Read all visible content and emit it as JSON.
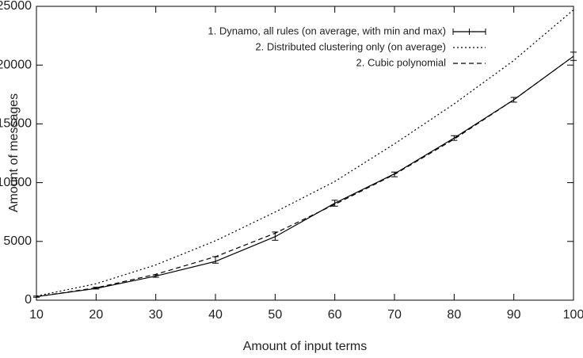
{
  "chart_data": {
    "type": "line",
    "xlabel": "Amount of input terms",
    "ylabel": "Amount of messages",
    "x": [
      10,
      20,
      30,
      40,
      50,
      60,
      70,
      80,
      90,
      100
    ],
    "series": [
      {
        "name": "1. Dynamo, all rules (on average, with min and max)",
        "color": "#000000",
        "style": "solid",
        "values": [
          300,
          1000,
          2050,
          3300,
          5400,
          8250,
          10750,
          13800,
          17050,
          20750
        ],
        "min": [
          250,
          950,
          1950,
          3150,
          5100,
          8000,
          10500,
          13600,
          16850,
          20400
        ],
        "max": [
          350,
          1100,
          2150,
          3700,
          5800,
          8500,
          10900,
          14000,
          17250,
          21100
        ]
      },
      {
        "name": "2. Distributed clustering only (on average)",
        "color": "#000000",
        "style": "dotted",
        "values": [
          350,
          1400,
          3000,
          5050,
          7500,
          10100,
          13300,
          16700,
          20400,
          24700
        ]
      },
      {
        "name": "2. Cubic polynomial",
        "color": "#000000",
        "style": "dashed",
        "values": [
          300,
          1050,
          2200,
          3700,
          5700,
          8150,
          10700,
          13700,
          17050,
          20750
        ]
      }
    ],
    "xlim": [
      10,
      100
    ],
    "xticks": [
      10,
      20,
      30,
      40,
      50,
      60,
      70,
      80,
      90,
      100
    ],
    "ylim": [
      0,
      25000
    ],
    "yticks": [
      0,
      5000,
      10000,
      15000,
      20000,
      25000
    ],
    "legend": "top-right"
  }
}
